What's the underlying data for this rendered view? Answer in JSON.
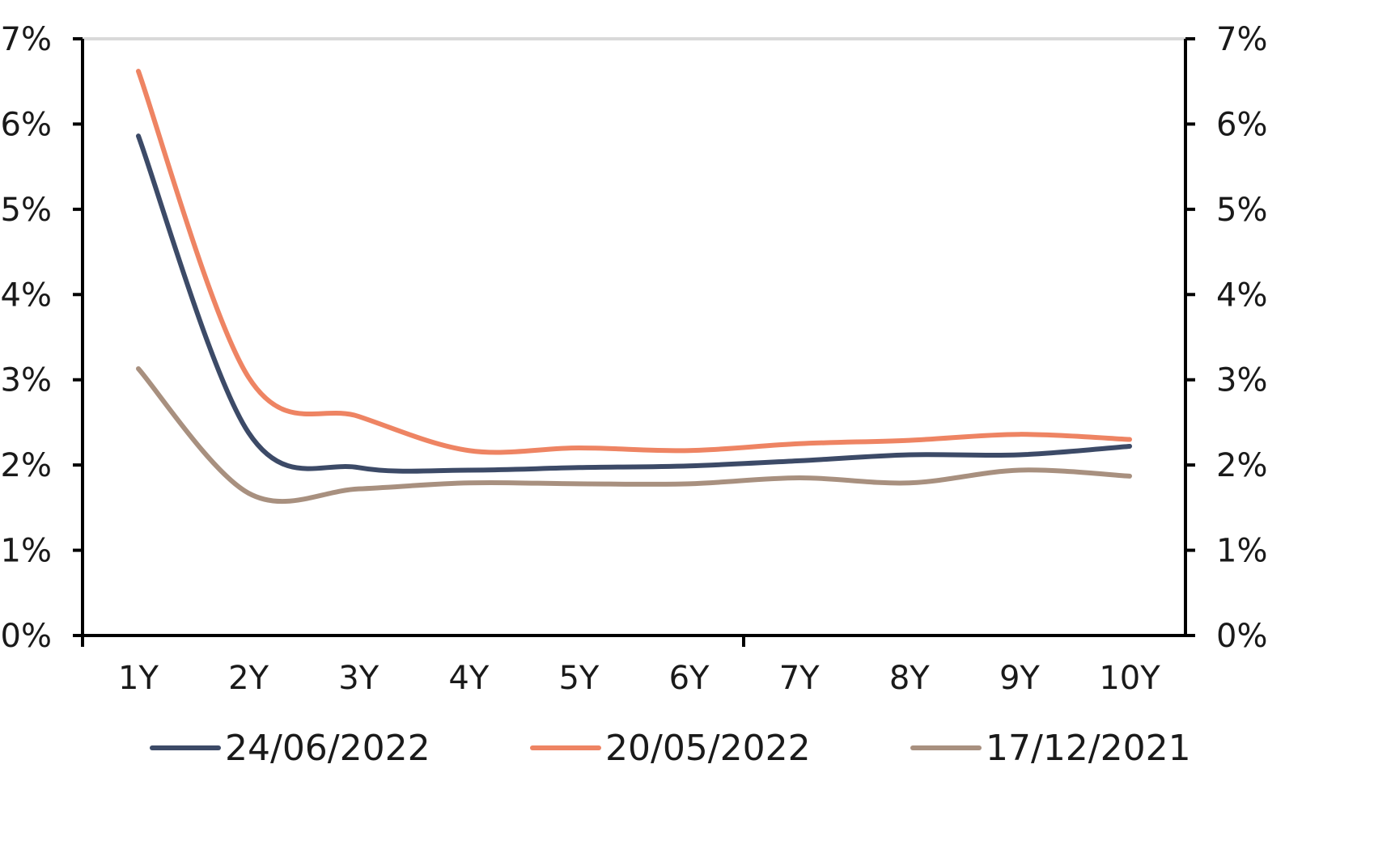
{
  "chart_data": {
    "type": "line",
    "categories": [
      "1Y",
      "2Y",
      "3Y",
      "4Y",
      "5Y",
      "6Y",
      "7Y",
      "8Y",
      "9Y",
      "10Y"
    ],
    "series": [
      {
        "name": "24/06/2022",
        "color": "#3c4a67",
        "values": [
          5.86,
          2.38,
          1.97,
          1.94,
          1.97,
          1.99,
          2.05,
          2.12,
          2.12,
          2.22
        ]
      },
      {
        "name": "20/05/2022",
        "color": "#ee8463",
        "values": [
          6.62,
          3.03,
          2.57,
          2.17,
          2.2,
          2.17,
          2.25,
          2.29,
          2.36,
          2.3
        ]
      },
      {
        "name": "17/12/2021",
        "color": "#a8907f",
        "values": [
          3.13,
          1.67,
          1.72,
          1.79,
          1.78,
          1.78,
          1.85,
          1.79,
          1.94,
          1.87
        ]
      }
    ],
    "y_ticks": [
      "0%",
      "1%",
      "2%",
      "3%",
      "4%",
      "5%",
      "6%",
      "7%"
    ],
    "ylim": [
      0,
      7
    ],
    "y_axis_left": true,
    "y_axis_right": true,
    "legend_position": "bottom"
  }
}
